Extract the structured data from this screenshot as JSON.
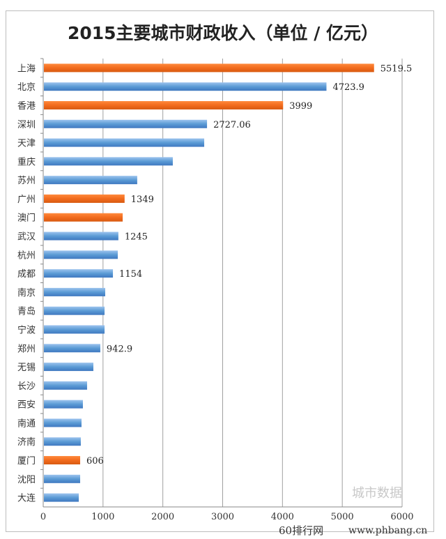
{
  "chart_data": {
    "type": "bar",
    "orientation": "horizontal",
    "title": "2015主要城市财政收入（单位 / 亿元）",
    "categories": [
      "上海",
      "北京",
      "香港",
      "深圳",
      "天津",
      "重庆",
      "苏州",
      "广州",
      "澳门",
      "武汉",
      "杭州",
      "成都",
      "南京",
      "青岛",
      "宁波",
      "郑州",
      "无锡",
      "长沙",
      "西安",
      "南通",
      "济南",
      "厦门",
      "沈阳",
      "大连"
    ],
    "values": [
      5519.5,
      4723.9,
      3999,
      2727.06,
      2680,
      2155,
      1560,
      1349,
      1317,
      1245,
      1235,
      1154,
      1025,
      1014,
      1014,
      942.9,
      827,
      722,
      652,
      629,
      617,
      606,
      606,
      583
    ],
    "data_labels": {
      "上海": "5519.5",
      "北京": "4723.9",
      "香港": "3999",
      "深圳": "2727.06",
      "广州": "1349",
      "武汉": "1245",
      "成都": "1154",
      "郑州": "942.9",
      "厦门": "606"
    },
    "highlighted": [
      "上海",
      "香港",
      "广州",
      "澳门",
      "厦门"
    ],
    "colors": {
      "default": "#5b9bd5",
      "highlight": "#f26b1d"
    },
    "xlim": [
      0,
      6000
    ],
    "xticks": [
      "0",
      "1000",
      "2000",
      "3000",
      "4000",
      "5000",
      "6000"
    ],
    "grid": "vertical"
  },
  "watermark": {
    "account": "城市数据",
    "site_name": "60排行网",
    "url": "www.phbang.cn"
  }
}
